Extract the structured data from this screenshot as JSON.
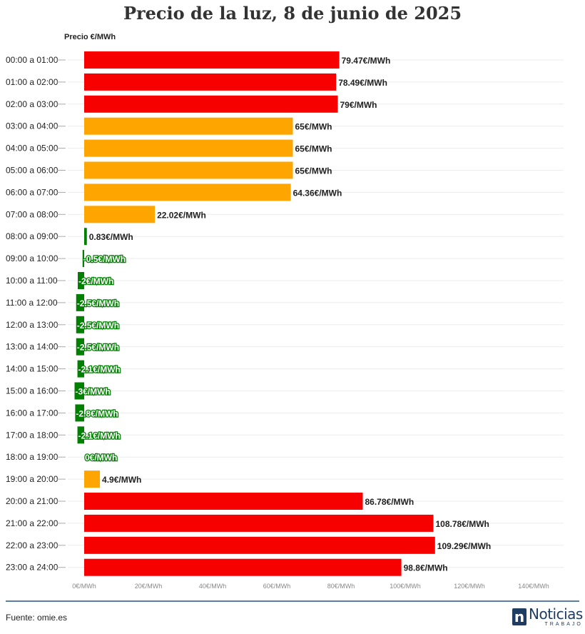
{
  "chart_data": {
    "type": "bar",
    "orientation": "horizontal",
    "title": "Precio de la luz, 8 de junio de 2025",
    "axis_caption": "Precio €/MWh",
    "categories": [
      "00:00 a 01:00",
      "01:00 a 02:00",
      "02:00 a 03:00",
      "03:00 a 04:00",
      "04:00 a 05:00",
      "05:00 a 06:00",
      "06:00 a 07:00",
      "07:00 a 08:00",
      "08:00 a 09:00",
      "09:00 a 10:00",
      "10:00 a 11:00",
      "11:00 a 12:00",
      "12:00 a 13:00",
      "13:00 a 14:00",
      "14:00 a 15:00",
      "15:00 a 16:00",
      "16:00 a 17:00",
      "17:00 a 18:00",
      "18:00 a 19:00",
      "19:00 a 20:00",
      "20:00 a 21:00",
      "21:00 a 22:00",
      "22:00 a 23:00",
      "23:00 a 24:00"
    ],
    "values": [
      79.47,
      78.49,
      79,
      65,
      65,
      65,
      64.36,
      22.02,
      0.83,
      -0.5,
      -2,
      -2.5,
      -2.5,
      -2.5,
      -2.1,
      -3,
      -2.8,
      -2.1,
      0,
      4.9,
      86.78,
      108.78,
      109.29,
      98.8
    ],
    "value_labels": [
      "79.47€/MWh",
      "78.49€/MWh",
      "79€/MWh",
      "65€/MWh",
      "65€/MWh",
      "65€/MWh",
      "64.36€/MWh",
      "22.02€/MWh",
      "0.83€/MWh",
      "-0.5€/MWh",
      "-2€/MWh",
      "-2.5€/MWh",
      "-2.5€/MWh",
      "-2.5€/MWh",
      "-2.1€/MWh",
      "-3€/MWh",
      "-2.8€/MWh",
      "-2.1€/MWh",
      "0€/MWh",
      "4.9€/MWh",
      "86.78€/MWh",
      "108.78€/MWh",
      "109.29€/MWh",
      "98.8€/MWh"
    ],
    "bar_colors": [
      "#f70000",
      "#f70000",
      "#f70000",
      "#ffa500",
      "#ffa500",
      "#ffa500",
      "#ffa500",
      "#ffa500",
      "#008000",
      "#008000",
      "#008000",
      "#008000",
      "#008000",
      "#008000",
      "#008000",
      "#008000",
      "#008000",
      "#008000",
      "#008000",
      "#ffa500",
      "#f70000",
      "#f70000",
      "#f70000",
      "#f70000"
    ],
    "xlim": [
      0,
      140
    ],
    "x_ticks": [
      0,
      20,
      40,
      60,
      80,
      100,
      120,
      140
    ],
    "x_tick_labels": [
      "0€/MWh",
      "20€/MWh",
      "40€/MWh",
      "60€/MWh",
      "80€/MWh",
      "100€/MWh",
      "120€/MWh",
      "140€/MWh"
    ],
    "grid": true,
    "colors": {
      "high": "#f70000",
      "medium": "#ffa500",
      "low": "#008000"
    }
  },
  "footer": {
    "source": "Fuente: omie.es",
    "logo_mark": "n",
    "logo_main": "Noticias",
    "logo_sub": "TRABAJO"
  }
}
